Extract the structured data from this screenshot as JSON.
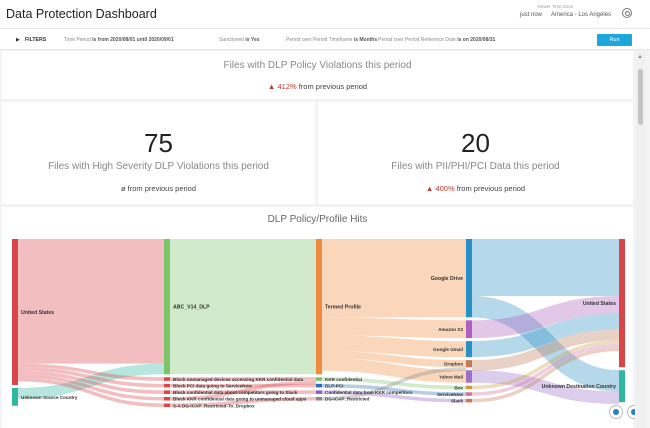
{
  "header": {
    "title": "Data Protection Dashboard",
    "tz_label": "Viewer Time Zone",
    "last_run": "just now",
    "timezone": "America - Los Angeles"
  },
  "filters": {
    "label": "FILTERS",
    "items": [
      {
        "name": "Time Period",
        "text": "is from 2020/08/01 until 2020/09/01"
      },
      {
        "name": "Sanctioned",
        "text": "is Yes"
      },
      {
        "name": "Period over Period Timeframe",
        "text": "is Months"
      },
      {
        "name": "Period over Period Reference Date",
        "text": "is on 2020/08/31"
      }
    ],
    "run_label": "Run"
  },
  "kpis": {
    "violations": {
      "title": "Files with DLP Policy Violations this period",
      "delta": "412%",
      "delta_suffix": "from previous period",
      "trend": "up"
    },
    "high_severity": {
      "value": "75",
      "title": "Files with High Severity DLP Violations this period",
      "delta": "ø",
      "delta_suffix": "from previous period"
    },
    "pii": {
      "value": "20",
      "title": "Files with PII/PHI/PCI Data this period",
      "delta": "400%",
      "delta_suffix": "from previous period",
      "trend": "up"
    }
  },
  "chart_data": {
    "type": "sankey",
    "title": "DLP Policy/Profile Hits",
    "columns": [
      {
        "nodes": [
          {
            "name": "United States",
            "color": "#d9464a",
            "weight": 0.82,
            "show_label": true
          },
          {
            "name": "Unknown Source Country",
            "color": "#2fb7a0",
            "weight": 0.1,
            "show_label": true
          }
        ]
      },
      {
        "nodes": [
          {
            "name": "ABC_V14_DLP",
            "color": "#7cc46a",
            "weight": 0.76,
            "show_label": true
          },
          {
            "name": "Block unmanaged devices accessing KKR confidential data",
            "color": "#d9464a",
            "weight": 0.02,
            "show_label": true
          },
          {
            "name": "Block PCI data going to ServiceNow",
            "color": "#d9464a",
            "weight": 0.02,
            "show_label": true
          },
          {
            "name": "Block confidential data about competitors going to Slack",
            "color": "#d9464a",
            "weight": 0.02,
            "show_label": true
          },
          {
            "name": "Block KKR confidential data going to unmanaged cloud apps",
            "color": "#d9464a",
            "weight": 0.02,
            "show_label": true
          },
          {
            "name": "S-A DG-ICAP_Restricted-To_Dropbox",
            "color": "#d9464a",
            "weight": 0.02,
            "show_label": true
          }
        ]
      },
      {
        "nodes": [
          {
            "name": "Termed Profile",
            "color": "#f08a3c",
            "weight": 0.76,
            "show_label": true
          },
          {
            "name": "KKR confidential",
            "color": "#7cc46a",
            "weight": 0.02,
            "show_label": true
          },
          {
            "name": "DLP-PCI",
            "color": "#2a6fb5",
            "weight": 0.02,
            "show_label": true
          },
          {
            "name": "Confidential data from KKR competitors",
            "color": "#8e5fc4",
            "weight": 0.02,
            "show_label": true
          },
          {
            "name": "DG-ICAP_Restricted",
            "color": "#888888",
            "weight": 0.02,
            "show_label": true
          }
        ]
      },
      {
        "nodes": [
          {
            "name": "Google Drive",
            "color": "#2a8fc4",
            "weight": 0.44,
            "show_label": true
          },
          {
            "name": "Amazon S3",
            "color": "#b05fc0",
            "weight": 0.1,
            "show_label": true
          },
          {
            "name": "Google Gmail",
            "color": "#2a8fc4",
            "weight": 0.09,
            "show_label": true
          },
          {
            "name": "Dropbox",
            "color": "#c47a5a",
            "weight": 0.04,
            "show_label": true
          },
          {
            "name": "Yahoo Mail",
            "color": "#9b70c8",
            "weight": 0.07,
            "show_label": true
          },
          {
            "name": "Box",
            "color": "#c8a040",
            "weight": 0.02,
            "show_label": true
          },
          {
            "name": "ServiceNow",
            "color": "#d070a0",
            "weight": 0.02,
            "show_label": true
          },
          {
            "name": "Slack",
            "color": "#c47a5a",
            "weight": 0.02,
            "show_label": true
          }
        ]
      },
      {
        "nodes": [
          {
            "name": "United States",
            "color": "#d9464a",
            "weight": 0.72,
            "show_label": true
          },
          {
            "name": "Unknown Destination Country",
            "color": "#2fb7a0",
            "weight": 0.18,
            "show_label": true
          }
        ]
      }
    ],
    "links": [
      {
        "from": [
          0,
          0
        ],
        "to": [
          1,
          0
        ],
        "value": 0.7
      },
      {
        "from": [
          0,
          1
        ],
        "to": [
          1,
          0
        ],
        "value": 0.06
      },
      {
        "from": [
          0,
          0
        ],
        "to": [
          1,
          1
        ],
        "value": 0.02
      },
      {
        "from": [
          0,
          0
        ],
        "to": [
          1,
          2
        ],
        "value": 0.02
      },
      {
        "from": [
          0,
          0
        ],
        "to": [
          1,
          3
        ],
        "value": 0.02
      },
      {
        "from": [
          0,
          0
        ],
        "to": [
          1,
          4
        ],
        "value": 0.02
      },
      {
        "from": [
          0,
          0
        ],
        "to": [
          1,
          5
        ],
        "value": 0.02
      },
      {
        "from": [
          1,
          0
        ],
        "to": [
          2,
          0
        ],
        "value": 0.76
      },
      {
        "from": [
          1,
          1
        ],
        "to": [
          2,
          1
        ],
        "value": 0.02
      },
      {
        "from": [
          1,
          2
        ],
        "to": [
          2,
          2
        ],
        "value": 0.02
      },
      {
        "from": [
          1,
          3
        ],
        "to": [
          2,
          3
        ],
        "value": 0.02
      },
      {
        "from": [
          1,
          4
        ],
        "to": [
          2,
          1
        ],
        "value": 0.02
      },
      {
        "from": [
          1,
          5
        ],
        "to": [
          2,
          4
        ],
        "value": 0.02
      },
      {
        "from": [
          2,
          0
        ],
        "to": [
          3,
          0
        ],
        "value": 0.44
      },
      {
        "from": [
          2,
          0
        ],
        "to": [
          3,
          1
        ],
        "value": 0.1
      },
      {
        "from": [
          2,
          0
        ],
        "to": [
          3,
          2
        ],
        "value": 0.09
      },
      {
        "from": [
          2,
          0
        ],
        "to": [
          3,
          3
        ],
        "value": 0.04
      },
      {
        "from": [
          2,
          0
        ],
        "to": [
          3,
          4
        ],
        "value": 0.07
      },
      {
        "from": [
          2,
          1
        ],
        "to": [
          3,
          5
        ],
        "value": 0.02
      },
      {
        "from": [
          2,
          2
        ],
        "to": [
          3,
          6
        ],
        "value": 0.02
      },
      {
        "from": [
          2,
          3
        ],
        "to": [
          3,
          7
        ],
        "value": 0.02
      },
      {
        "from": [
          2,
          4
        ],
        "to": [
          3,
          3
        ],
        "value": 0.02
      },
      {
        "from": [
          3,
          0
        ],
        "to": [
          4,
          0
        ],
        "value": 0.32
      },
      {
        "from": [
          3,
          0
        ],
        "to": [
          4,
          1
        ],
        "value": 0.12
      },
      {
        "from": [
          3,
          1
        ],
        "to": [
          4,
          0
        ],
        "value": 0.1
      },
      {
        "from": [
          3,
          2
        ],
        "to": [
          4,
          0
        ],
        "value": 0.09
      },
      {
        "from": [
          3,
          3
        ],
        "to": [
          4,
          0
        ],
        "value": 0.06
      },
      {
        "from": [
          3,
          4
        ],
        "to": [
          4,
          1
        ],
        "value": 0.07
      },
      {
        "from": [
          3,
          5
        ],
        "to": [
          4,
          0
        ],
        "value": 0.02
      },
      {
        "from": [
          3,
          6
        ],
        "to": [
          4,
          0
        ],
        "value": 0.02
      },
      {
        "from": [
          3,
          7
        ],
        "to": [
          4,
          0
        ],
        "value": 0.02
      }
    ]
  }
}
